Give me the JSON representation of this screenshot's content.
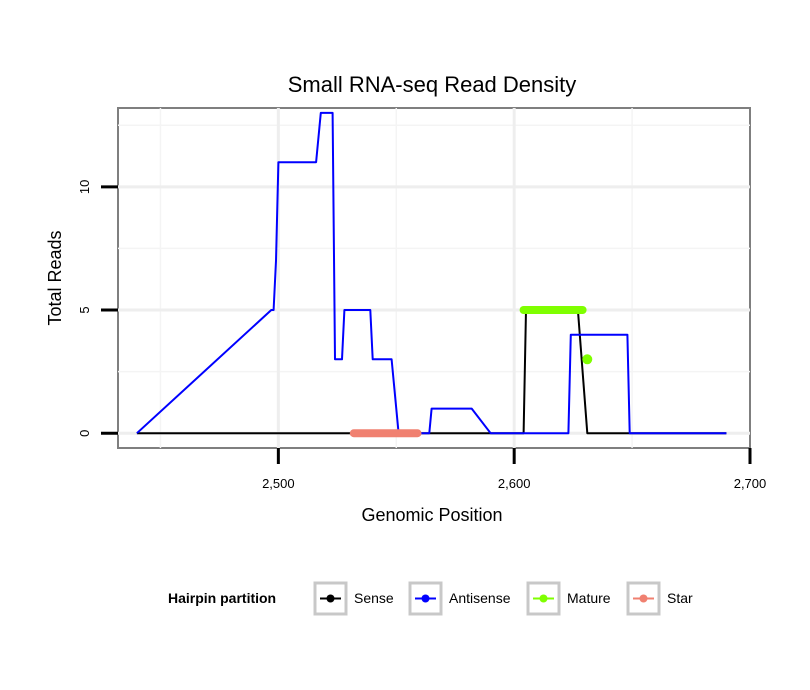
{
  "chart_data": {
    "type": "line",
    "title": "Small RNA-seq Read Density",
    "xlabel": "Genomic Position",
    "ylabel": "Total Reads",
    "xlim": [
      2432,
      2700
    ],
    "ylim": [
      -0.6,
      13.2
    ],
    "x_ticks": [
      {
        "value": 2500,
        "label": "2,500"
      },
      {
        "value": 2600,
        "label": "2,600"
      },
      {
        "value": 2700,
        "label": "2,700"
      }
    ],
    "y_ticks": [
      {
        "value": 0,
        "label": "0"
      },
      {
        "value": 5,
        "label": "5"
      },
      {
        "value": 10,
        "label": "10"
      }
    ],
    "grid": true,
    "legend": {
      "title": "Hairpin partition",
      "position": "bottom",
      "entries": [
        {
          "name": "Sense",
          "color": "#000000"
        },
        {
          "name": "Antisense",
          "color": "#0000ff"
        },
        {
          "name": "Mature",
          "color": "#7fff00"
        },
        {
          "name": "Star",
          "color": "#f08070"
        }
      ]
    },
    "series": [
      {
        "name": "Sense",
        "color": "#000000",
        "style": "line",
        "x": [
          2440,
          2604,
          2605,
          2627,
          2631,
          2690
        ],
        "y": [
          0,
          0,
          5,
          5,
          0,
          0
        ]
      },
      {
        "name": "Antisense",
        "color": "#0000ff",
        "style": "line",
        "x": [
          2440,
          2497,
          2498,
          2499,
          2500,
          2501,
          2516,
          2518,
          2520,
          2523,
          2524,
          2527,
          2528,
          2539,
          2540,
          2546,
          2547,
          2548,
          2551,
          2564,
          2565,
          2582,
          2590,
          2605,
          2623,
          2624,
          2647,
          2648,
          2649,
          2690
        ],
        "y": [
          0,
          5,
          5,
          7,
          11,
          11,
          11,
          13,
          13,
          13,
          3,
          3,
          5,
          5,
          3,
          3,
          3,
          3,
          0,
          0,
          1,
          1,
          0,
          0,
          0,
          4,
          4,
          4,
          0,
          0
        ]
      },
      {
        "name": "Mature",
        "color": "#7fff00",
        "style": "thick",
        "x": [
          2604,
          2629
        ],
        "y": [
          5,
          5
        ]
      },
      {
        "name": "Mature",
        "color": "#7fff00",
        "style": "point",
        "x": [
          2631
        ],
        "y": [
          3
        ]
      },
      {
        "name": "Star",
        "color": "#f08070",
        "style": "thick",
        "x": [
          2532,
          2559
        ],
        "y": [
          0,
          0
        ]
      }
    ]
  }
}
